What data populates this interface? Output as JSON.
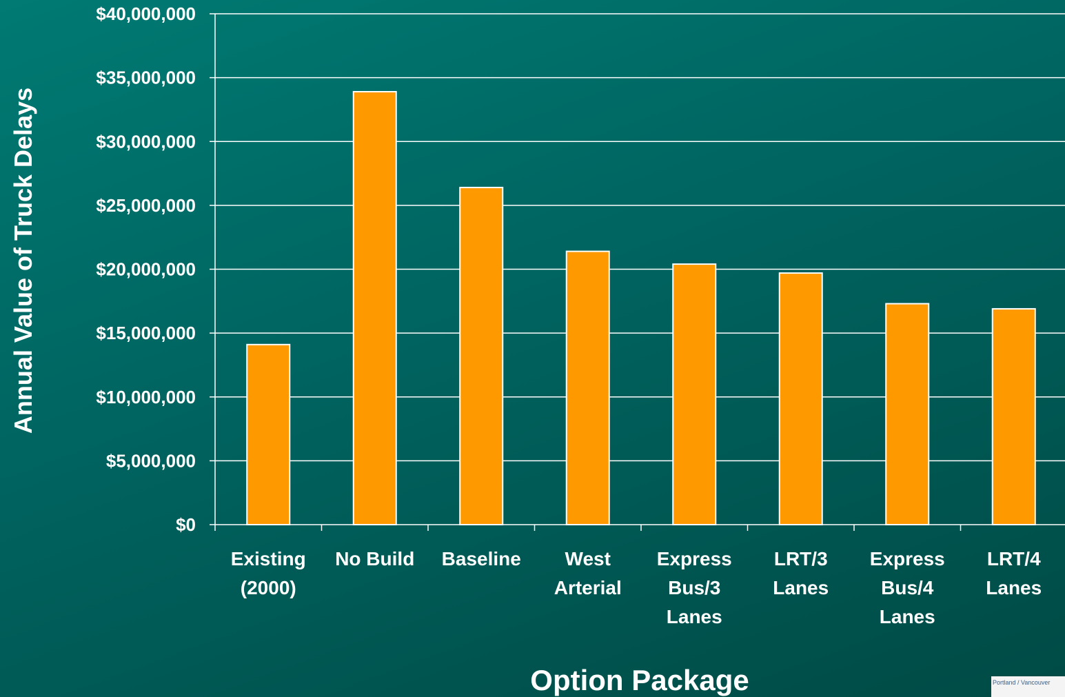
{
  "chart_data": {
    "type": "bar",
    "title": "",
    "xlabel": "Option Package",
    "ylabel": "Annual Value of Truck Delays",
    "ylim": [
      0,
      40000000
    ],
    "ytick_values": [
      0,
      5000000,
      10000000,
      15000000,
      20000000,
      25000000,
      30000000,
      35000000,
      40000000
    ],
    "ytick_labels": [
      "$0",
      "$5,000,000",
      "$10,000,000",
      "$15,000,000",
      "$20,000,000",
      "$25,000,000",
      "$30,000,000",
      "$35,000,000",
      "$40,000,000"
    ],
    "categories": [
      [
        "Existing",
        "(2000)"
      ],
      [
        "No Build"
      ],
      [
        "Baseline"
      ],
      [
        "West",
        "Arterial"
      ],
      [
        "Express",
        "Bus/3",
        "Lanes"
      ],
      [
        "LRT/3",
        "Lanes"
      ],
      [
        "Express",
        "Bus/4",
        "Lanes"
      ],
      [
        "LRT/4",
        "Lanes"
      ]
    ],
    "values": [
      14100000,
      33900000,
      26400000,
      21400000,
      20400000,
      19700000,
      17300000,
      16900000
    ],
    "grid": true,
    "colors": {
      "bar": "#ff9900",
      "bar_edge": "#ffffff",
      "grid": "#ffffff",
      "text": "#ffffff"
    }
  },
  "footer": {
    "logo_text": "Portland / Vancouver"
  }
}
